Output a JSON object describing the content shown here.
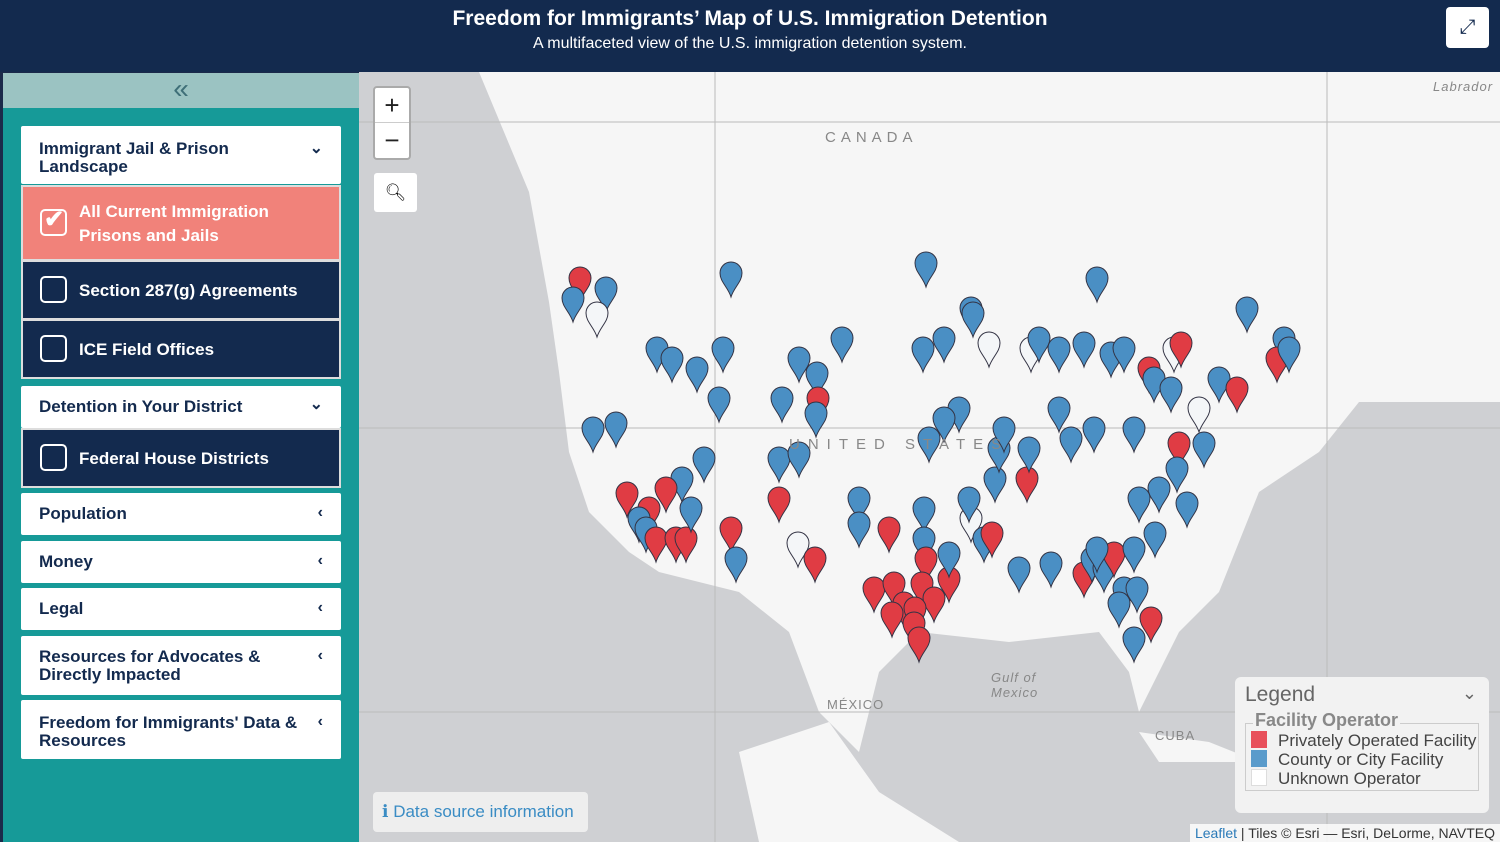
{
  "header": {
    "title": "Freedom for Immigrants’ Map of U.S. Immigration Detention",
    "subtitle": "A multifaceted view of the U.S. immigration detention system.",
    "expand_icon": "expand-icon"
  },
  "sidebar": {
    "collapse_icon": "double-chevron-left-icon",
    "sections": [
      {
        "label": "Immigrant Jail & Prison Landscape",
        "expanded": true,
        "items": [
          {
            "label": "All Current Immigration Prisons and Jails",
            "checked": true
          },
          {
            "label": "Section 287(g) Agreements",
            "checked": false
          },
          {
            "label": "ICE Field Offices",
            "checked": false
          }
        ]
      },
      {
        "label": "Detention in Your District",
        "expanded": true,
        "items": [
          {
            "label": "Federal House Districts",
            "checked": false
          }
        ]
      },
      {
        "label": "Population",
        "expanded": false
      },
      {
        "label": "Money",
        "expanded": false
      },
      {
        "label": "Legal",
        "expanded": false
      },
      {
        "label": "Resources for Advocates & Directly Impacted",
        "expanded": false
      },
      {
        "label": "Freedom for Immigrants' Data & Resources",
        "expanded": false
      }
    ]
  },
  "map": {
    "labels": {
      "canada": "CANADA",
      "us": "UNITED STATES",
      "mexico": "MÉXICO",
      "gulf": "Gulf of Mexico",
      "cuba": "CUBA",
      "labrador": "Labrador"
    },
    "zoom_in": "+",
    "zoom_out": "−",
    "data_source": "Data source information",
    "attribution": {
      "leaflet": "Leaflet",
      "tiles": "| Tiles © Esri — Esri, DeLorme, NAVTEQ"
    }
  },
  "legend": {
    "title": "Legend",
    "group": "Facility Operator",
    "items": [
      {
        "label": "Privately Operated Facility",
        "color": "#e8505b"
      },
      {
        "label": "County or City Facility",
        "color": "#5a9bcb"
      },
      {
        "label": "Unknown Operator",
        "color": "#ffffff"
      }
    ]
  },
  "colors": {
    "header": "#132a4e",
    "sidebar": "#169a98",
    "active": "#f1827a",
    "private": "#e03c44",
    "county": "#4a8fc4",
    "unknown": "#f4f6f8"
  }
}
